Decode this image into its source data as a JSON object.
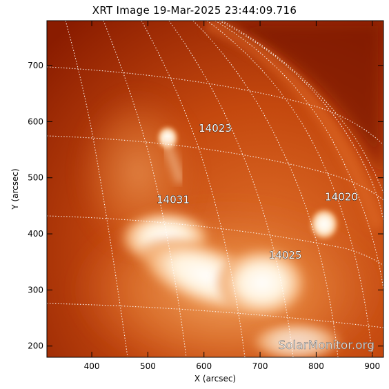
{
  "title": "XRT Image 19-Mar-2025 23:44:09.716",
  "xlabel": "X (arcsec)",
  "ylabel": "Y (arcsec)",
  "x_ticks": [
    "400",
    "500",
    "600",
    "700",
    "800",
    "900"
  ],
  "y_ticks": [
    "200",
    "300",
    "400",
    "500",
    "600",
    "700"
  ],
  "x_tick_values": [
    400,
    500,
    600,
    700,
    800,
    900
  ],
  "y_tick_values": [
    200,
    300,
    400,
    500,
    600,
    700
  ],
  "xlim": [
    320,
    920
  ],
  "ylim": [
    180,
    780
  ],
  "regions": [
    {
      "label": "14023",
      "x": 620,
      "y": 582
    },
    {
      "label": "14031",
      "x": 545,
      "y": 455
    },
    {
      "label": "14020",
      "x": 845,
      "y": 460
    },
    {
      "label": "14025",
      "x": 745,
      "y": 356
    }
  ],
  "watermark": "SolarMonitor.org",
  "colors": {
    "background_dark": "#8b1c00",
    "mid": "#c84a10",
    "bright": "#f2a060",
    "saturated": "#ffffff",
    "grid": "#ffffff"
  }
}
